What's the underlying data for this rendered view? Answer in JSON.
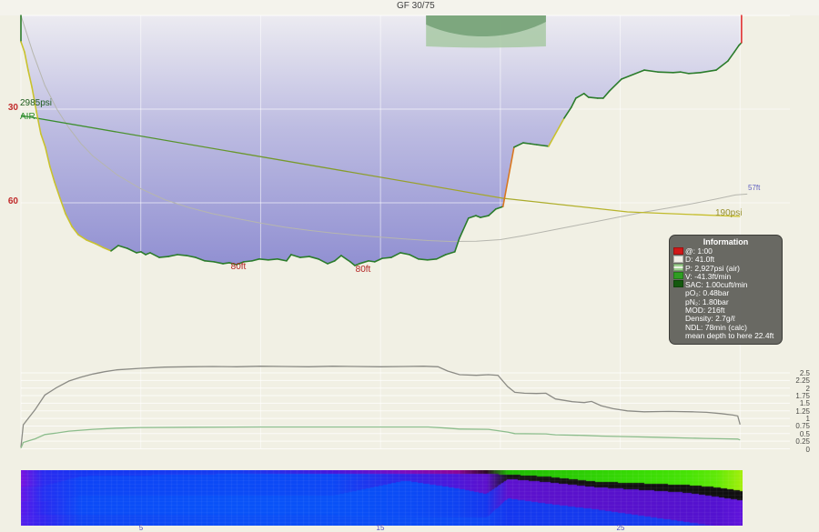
{
  "window": {
    "app_context": "dive profile view",
    "bg": "#f1f0e4"
  },
  "labels": {
    "gf": "GF 30/75",
    "start_pressure": "2985psi",
    "gas": "AIR",
    "depth_markers": [
      "80ft",
      "80ft"
    ],
    "mean_depth_end": "57ft",
    "end_pressure": "190psi"
  },
  "axes": {
    "depth_ticks": [
      {
        "label": "30",
        "ft": 30
      },
      {
        "label": "60",
        "ft": 60
      }
    ],
    "time_ticks": [
      {
        "label": "5",
        "min": 5
      },
      {
        "label": "15",
        "min": 15
      },
      {
        "label": "25",
        "min": 25
      }
    ],
    "pp_ticks": [
      {
        "label": "2.5",
        "v": 2.5
      },
      {
        "label": "2.25",
        "v": 2.25
      },
      {
        "label": "2",
        "v": 2.0
      },
      {
        "label": "1.75",
        "v": 1.75
      },
      {
        "label": "1.5",
        "v": 1.5
      },
      {
        "label": "1.25",
        "v": 1.25
      },
      {
        "label": "1",
        "v": 1.0
      },
      {
        "label": "0.75",
        "v": 0.75
      },
      {
        "label": "0.5",
        "v": 0.5
      },
      {
        "label": "0.25",
        "v": 0.25
      },
      {
        "label": "0",
        "v": 0.0
      }
    ]
  },
  "info_box": {
    "title": "Information",
    "rows": [
      "@: 1:00",
      "D: 41.0ft",
      "P: 2,927psi (air)",
      "V: -41.3ft/min",
      "SAC: 1.00cuft/min",
      "pO₂: 0.48bar",
      "pN₂: 1.80bar",
      "MOD: 216ft",
      "Density: 2.7g/ℓ",
      "NDL: 78min (calc)",
      "mean depth to here 22.4ft"
    ],
    "swatch_colors": [
      "#d01818",
      "#f0efe6",
      "striped",
      "#2f9e22",
      "#14590e"
    ]
  },
  "chart_data": [
    {
      "type": "area",
      "title": "dive depth profile",
      "x_unit": "min",
      "y_unit": "ft",
      "x_range": [
        0,
        32.5
      ],
      "y_range": [
        0,
        105
      ],
      "segment_colors": {
        "g": "#2b7c2b",
        "y": "#c9c22e",
        "o": "#d9771f",
        "r": "#e23131"
      },
      "profile": [
        [
          0,
          0,
          "g"
        ],
        [
          0,
          8.4,
          "g"
        ],
        [
          0.15,
          11.7,
          "y"
        ],
        [
          0.3,
          17.5,
          "y"
        ],
        [
          0.46,
          23,
          "y"
        ],
        [
          0.65,
          30.9,
          "y"
        ],
        [
          0.83,
          37.9,
          "y"
        ],
        [
          1.02,
          42.2,
          "y"
        ],
        [
          1.21,
          48.4,
          "y"
        ],
        [
          1.4,
          53.3,
          "y"
        ],
        [
          1.63,
          58.5,
          "y"
        ],
        [
          1.86,
          63.5,
          "y"
        ],
        [
          2.13,
          67.6,
          "y"
        ],
        [
          2.39,
          70.2,
          "y"
        ],
        [
          2.73,
          71.9,
          "y"
        ],
        [
          3.11,
          73.1,
          "y"
        ],
        [
          3.42,
          74.3,
          "y"
        ],
        [
          3.76,
          75.4,
          "y"
        ],
        [
          4.06,
          73.7,
          "g"
        ],
        [
          4.44,
          74.6,
          "g"
        ],
        [
          4.82,
          76,
          "g"
        ],
        [
          5.01,
          75.7,
          "g"
        ],
        [
          5.2,
          76.6,
          "g"
        ],
        [
          5.39,
          76,
          "g"
        ],
        [
          5.77,
          77.5,
          "g"
        ],
        [
          6.15,
          77.2,
          "g"
        ],
        [
          6.53,
          76.6,
          "g"
        ],
        [
          6.91,
          76.9,
          "g"
        ],
        [
          7.29,
          77.5,
          "g"
        ],
        [
          7.67,
          78.6,
          "g"
        ],
        [
          8.05,
          78.9,
          "g"
        ],
        [
          8.43,
          79.5,
          "g"
        ],
        [
          8.69,
          79.2,
          "g"
        ],
        [
          8.99,
          79.8,
          "g"
        ],
        [
          9.3,
          78.9,
          "g"
        ],
        [
          9.64,
          78.6,
          "g"
        ],
        [
          9.94,
          78,
          "g"
        ],
        [
          10.32,
          78.3,
          "g"
        ],
        [
          10.7,
          78,
          "g"
        ],
        [
          11.08,
          78.6,
          "g"
        ],
        [
          11.27,
          76.6,
          "g"
        ],
        [
          11.65,
          77.5,
          "g"
        ],
        [
          12.03,
          77.2,
          "g"
        ],
        [
          12.41,
          78,
          "g"
        ],
        [
          12.79,
          79.5,
          "g"
        ],
        [
          13.09,
          78.6,
          "g"
        ],
        [
          13.36,
          76.9,
          "g"
        ],
        [
          13.74,
          78.9,
          "g"
        ],
        [
          13.93,
          80.1,
          "g"
        ],
        [
          14.12,
          79.5,
          "g"
        ],
        [
          14.5,
          78.6,
          "g"
        ],
        [
          14.76,
          78.9,
          "g"
        ],
        [
          15.07,
          77.8,
          "g"
        ],
        [
          15.45,
          77.5,
          "g"
        ],
        [
          15.83,
          76,
          "g"
        ],
        [
          16.21,
          76.6,
          "g"
        ],
        [
          16.58,
          78,
          "g"
        ],
        [
          16.96,
          78.3,
          "g"
        ],
        [
          17.34,
          78,
          "g"
        ],
        [
          17.72,
          76.6,
          "g"
        ],
        [
          18.1,
          75.7,
          "g"
        ],
        [
          18.29,
          71.4,
          "g"
        ],
        [
          18.67,
          64.9,
          "g"
        ],
        [
          18.98,
          64.1,
          "g"
        ],
        [
          19.17,
          64.7,
          "g"
        ],
        [
          19.51,
          64.1,
          "g"
        ],
        [
          19.81,
          62,
          "g"
        ],
        [
          20.11,
          61.2,
          "g"
        ],
        [
          20.57,
          42.2,
          "o"
        ],
        [
          20.95,
          40.8,
          "g"
        ],
        [
          21.25,
          41.1,
          "g"
        ],
        [
          21.52,
          41.4,
          "g"
        ],
        [
          22.01,
          41.9,
          "g"
        ],
        [
          22.66,
          32.9,
          "y"
        ],
        [
          22.96,
          29.4,
          "g"
        ],
        [
          23.15,
          26.5,
          "g"
        ],
        [
          23.49,
          25,
          "g"
        ],
        [
          23.68,
          26.2,
          "g"
        ],
        [
          24.06,
          26.5,
          "g"
        ],
        [
          24.29,
          26.5,
          "g"
        ],
        [
          24.55,
          24.2,
          "g"
        ],
        [
          25.05,
          20.4,
          "g"
        ],
        [
          26,
          17.5,
          "g"
        ],
        [
          26.57,
          18.1,
          "g"
        ],
        [
          27.21,
          18.3,
          "g"
        ],
        [
          27.51,
          18.1,
          "g"
        ],
        [
          27.86,
          18.6,
          "g"
        ],
        [
          28.35,
          18.3,
          "g"
        ],
        [
          29,
          17.5,
          "g"
        ],
        [
          29.49,
          14.6,
          "g"
        ],
        [
          29.76,
          11.7,
          "g"
        ],
        [
          29.95,
          9.6,
          "g"
        ],
        [
          30.06,
          8.7,
          "g"
        ],
        [
          30.06,
          0,
          "r"
        ]
      ],
      "pressure_line": {
        "unit": "psi",
        "points": [
          [
            0,
            2985
          ],
          [
            20.1,
            693
          ],
          [
            25.3,
            315
          ],
          [
            30,
            190
          ]
        ]
      },
      "mean_depth_line": [
        [
          0,
          0
        ],
        [
          0.5,
          12
        ],
        [
          1,
          22.4
        ],
        [
          1.5,
          30
        ],
        [
          2,
          36
        ],
        [
          2.5,
          41
        ],
        [
          3,
          45
        ],
        [
          4,
          51
        ],
        [
          5,
          55.5
        ],
        [
          6,
          59
        ],
        [
          7,
          61.5
        ],
        [
          8,
          63.5
        ],
        [
          9,
          65
        ],
        [
          10,
          66.5
        ],
        [
          11,
          67.8
        ],
        [
          12,
          68.8
        ],
        [
          13,
          69.7
        ],
        [
          14,
          70.4
        ],
        [
          15,
          71
        ],
        [
          16,
          71.6
        ],
        [
          17,
          72.1
        ],
        [
          18,
          72.4
        ],
        [
          19,
          72.3
        ],
        [
          20,
          71.8
        ],
        [
          21,
          70.5
        ],
        [
          22,
          69
        ],
        [
          23,
          67.5
        ],
        [
          24,
          66
        ],
        [
          25,
          64.5
        ],
        [
          26,
          63
        ],
        [
          27,
          61.7
        ],
        [
          28,
          60.3
        ],
        [
          29,
          58.8
        ],
        [
          29.8,
          57.5
        ],
        [
          30.3,
          57.2
        ]
      ],
      "ceiling_region": {
        "t_start": 16.9,
        "t_end": 21.9,
        "max_ceiling_ft": 10.2,
        "dark_band_ft": 6.5
      }
    },
    {
      "type": "line",
      "title": "gas partial pressures",
      "x_unit": "min",
      "y_unit": "bar",
      "y_range": [
        0,
        2.5
      ],
      "grid": true,
      "legend": "none",
      "series": [
        {
          "name": "pN2",
          "color": "#8b8b85",
          "points": [
            [
              0,
              0.05
            ],
            [
              0.1,
              0.79
            ],
            [
              0.6,
              1.3
            ],
            [
              1,
              1.77
            ],
            [
              1.5,
              2.02
            ],
            [
              2,
              2.23
            ],
            [
              2.5,
              2.36
            ],
            [
              3,
              2.46
            ],
            [
              3.5,
              2.54
            ],
            [
              4,
              2.6
            ],
            [
              5,
              2.65
            ],
            [
              6,
              2.69
            ],
            [
              7,
              2.7
            ],
            [
              8,
              2.71
            ],
            [
              9,
              2.7
            ],
            [
              10,
              2.72
            ],
            [
              11,
              2.71
            ],
            [
              12,
              2.7
            ],
            [
              13,
              2.72
            ],
            [
              14,
              2.71
            ],
            [
              15,
              2.7
            ],
            [
              16,
              2.71
            ],
            [
              16.8,
              2.72
            ],
            [
              17.4,
              2.7
            ],
            [
              17.8,
              2.56
            ],
            [
              18.3,
              2.44
            ],
            [
              19,
              2.42
            ],
            [
              19.5,
              2.44
            ],
            [
              19.9,
              2.42
            ],
            [
              20.3,
              2.05
            ],
            [
              20.6,
              1.86
            ],
            [
              21,
              1.83
            ],
            [
              21.5,
              1.82
            ],
            [
              21.9,
              1.83
            ],
            [
              22.3,
              1.64
            ],
            [
              23,
              1.55
            ],
            [
              23.5,
              1.52
            ],
            [
              23.8,
              1.56
            ],
            [
              24.2,
              1.42
            ],
            [
              24.7,
              1.32
            ],
            [
              25.3,
              1.25
            ],
            [
              26,
              1.22
            ],
            [
              27,
              1.23
            ],
            [
              28,
              1.22
            ],
            [
              28.6,
              1.2
            ],
            [
              29.2,
              1.16
            ],
            [
              29.7,
              1.11
            ],
            [
              29.9,
              1.08
            ],
            [
              30,
              0.8
            ]
          ]
        },
        {
          "name": "pO2",
          "color": "#8cbd8c",
          "points": [
            [
              0,
              0.02
            ],
            [
              0.1,
              0.21
            ],
            [
              0.6,
              0.33
            ],
            [
              1,
              0.47
            ],
            [
              1.5,
              0.52
            ],
            [
              2,
              0.58
            ],
            [
              3,
              0.64
            ],
            [
              4,
              0.68
            ],
            [
              5,
              0.7
            ],
            [
              7,
              0.71
            ],
            [
              10,
              0.72
            ],
            [
              14,
              0.72
            ],
            [
              17,
              0.72
            ],
            [
              17.8,
              0.68
            ],
            [
              18.3,
              0.65
            ],
            [
              19.5,
              0.64
            ],
            [
              20.3,
              0.55
            ],
            [
              20.6,
              0.5
            ],
            [
              21.9,
              0.49
            ],
            [
              22.3,
              0.46
            ],
            [
              23.5,
              0.44
            ],
            [
              24.2,
              0.42
            ],
            [
              25.3,
              0.4
            ],
            [
              26.5,
              0.38
            ],
            [
              27.5,
              0.36
            ],
            [
              28.5,
              0.34
            ],
            [
              29.3,
              0.33
            ],
            [
              29.9,
              0.32
            ],
            [
              30,
              0.29
            ]
          ]
        }
      ]
    },
    {
      "type": "heatmap",
      "title": "tissue saturation heatmap",
      "x_unit": "min",
      "rows": 16,
      "keyframes": [
        [
          0.0,
          [
            "#7713e0",
            0.28,
            "#6517e6",
            0.55,
            "#5a1aea",
            0.8,
            "#5520ec",
            1
          ]
        ],
        [
          0.9,
          [
            "#2b2cf0",
            0.28,
            "#2530f2",
            0.55,
            "#2a2af0",
            0.8,
            "#3325ef",
            1
          ]
        ],
        [
          2.5,
          [
            "#1636f2",
            0.1,
            "#0d44f6",
            0.45,
            "#0b4af7",
            0.8,
            "#0f44f3",
            1
          ]
        ],
        [
          9.0,
          [
            "#173cf0",
            0.06,
            "#0a4af6",
            0.45,
            "#0852f8",
            0.8,
            "#0a4ef6",
            1
          ]
        ],
        [
          13.0,
          [
            "#4a16da",
            0.055,
            "#0c47f5",
            0.45,
            "#0851f7",
            0.8,
            "#0a4df5",
            1
          ]
        ],
        [
          16.0,
          [
            "#7e0dbd",
            0.05,
            "#3023e6",
            0.18,
            "#0a4bf6",
            0.85,
            "#0a4df5",
            1
          ]
        ],
        [
          18.2,
          [
            "#8f0694",
            0.05,
            "#4d16da",
            0.32,
            "#0e42f2",
            0.85,
            "#0c49f4",
            1
          ]
        ],
        [
          19.4,
          [
            "#2e0a26",
            0.06,
            "#5d10cd",
            0.42,
            "#1336ef",
            0.85,
            "#0e45f3",
            1
          ]
        ],
        [
          20.3,
          [
            "#1cb902",
            0.07,
            "#161217",
            0.15,
            "#5c11cf",
            0.5,
            "#1336ef",
            1
          ]
        ],
        [
          22.0,
          [
            "#26c603",
            0.11,
            "#141113",
            0.21,
            "#5a11cc",
            0.6,
            "#1439ee",
            1
          ]
        ],
        [
          24.0,
          [
            "#30d204",
            0.2,
            "#121012",
            0.3,
            "#5811cc",
            0.7,
            "#1439ee",
            1
          ]
        ],
        [
          26.0,
          [
            "#3adc04",
            0.23,
            "#111011",
            0.35,
            "#5611cd",
            0.82,
            "#153bee",
            1
          ]
        ],
        [
          27.8,
          [
            "#47e305",
            0.26,
            "#100f10",
            0.4,
            "#5411ce",
            0.93,
            "#163dee",
            1
          ]
        ],
        [
          29.0,
          [
            "#60e906",
            0.3,
            "#0f0e0f",
            0.47,
            "#5311d0",
            0.99,
            "#4b14d6",
            1
          ]
        ],
        [
          30.1,
          [
            "#a5ef0a",
            0.37,
            "#100f10",
            0.54,
            "#6013dc",
            0.99,
            "#5a14d8",
            1
          ]
        ]
      ]
    }
  ]
}
